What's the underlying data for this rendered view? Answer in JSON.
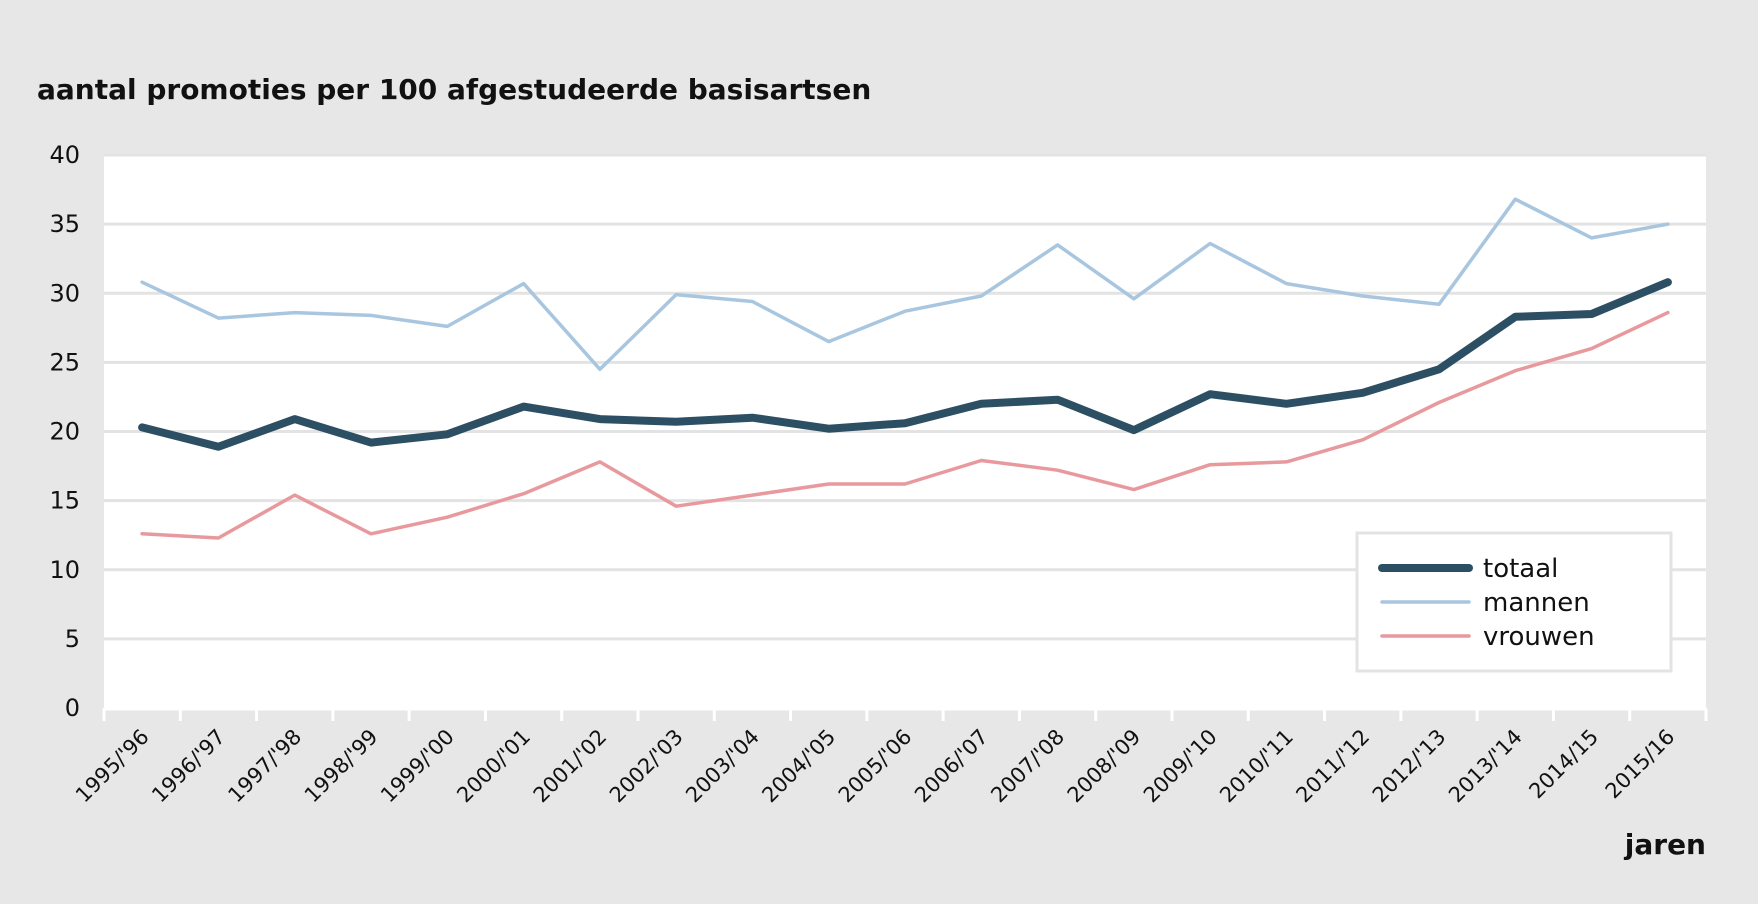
{
  "chart_data": {
    "type": "line",
    "title": "aantal promoties per 100 afgestudeerde basisartsen",
    "xlabel": "jaren",
    "ylabel": "",
    "ylim": [
      0,
      40
    ],
    "yticks": [
      0,
      5,
      10,
      15,
      20,
      25,
      30,
      35,
      40
    ],
    "grid": true,
    "legend_position": "bottom-right",
    "categories": [
      "1995/'96",
      "1996/'97",
      "1997/'98",
      "1998/'99",
      "1999/'00",
      "2000/'01",
      "2001/'02",
      "2002/'03",
      "2003/'04",
      "2004/'05",
      "2005/'06",
      "2006/'07",
      "2007/'08",
      "2008/'09",
      "2009/'10",
      "2010/'11",
      "2011/'12",
      "2012/'13",
      "2013/'14",
      "2014/15",
      "2015/16"
    ],
    "series": [
      {
        "name": "totaal",
        "color": "#2d4f63",
        "values": [
          20.3,
          18.9,
          20.9,
          19.2,
          19.8,
          21.8,
          20.9,
          20.7,
          21.0,
          20.2,
          20.6,
          22.0,
          22.3,
          20.1,
          22.7,
          22.0,
          22.8,
          24.5,
          28.3,
          28.5,
          30.8
        ]
      },
      {
        "name": "mannen",
        "color": "#a8c6df",
        "values": [
          30.8,
          28.2,
          28.6,
          28.4,
          27.6,
          30.7,
          24.5,
          29.9,
          29.4,
          26.5,
          28.7,
          29.8,
          33.5,
          29.6,
          33.6,
          30.7,
          29.8,
          29.2,
          36.8,
          34.0,
          35.0
        ]
      },
      {
        "name": "vrouwen",
        "color": "#e8999d",
        "values": [
          12.6,
          12.3,
          15.4,
          12.6,
          13.8,
          15.5,
          17.8,
          14.6,
          15.4,
          16.2,
          16.2,
          17.9,
          17.2,
          15.8,
          17.6,
          17.8,
          19.4,
          22.1,
          24.4,
          26.0,
          28.6
        ]
      }
    ]
  }
}
